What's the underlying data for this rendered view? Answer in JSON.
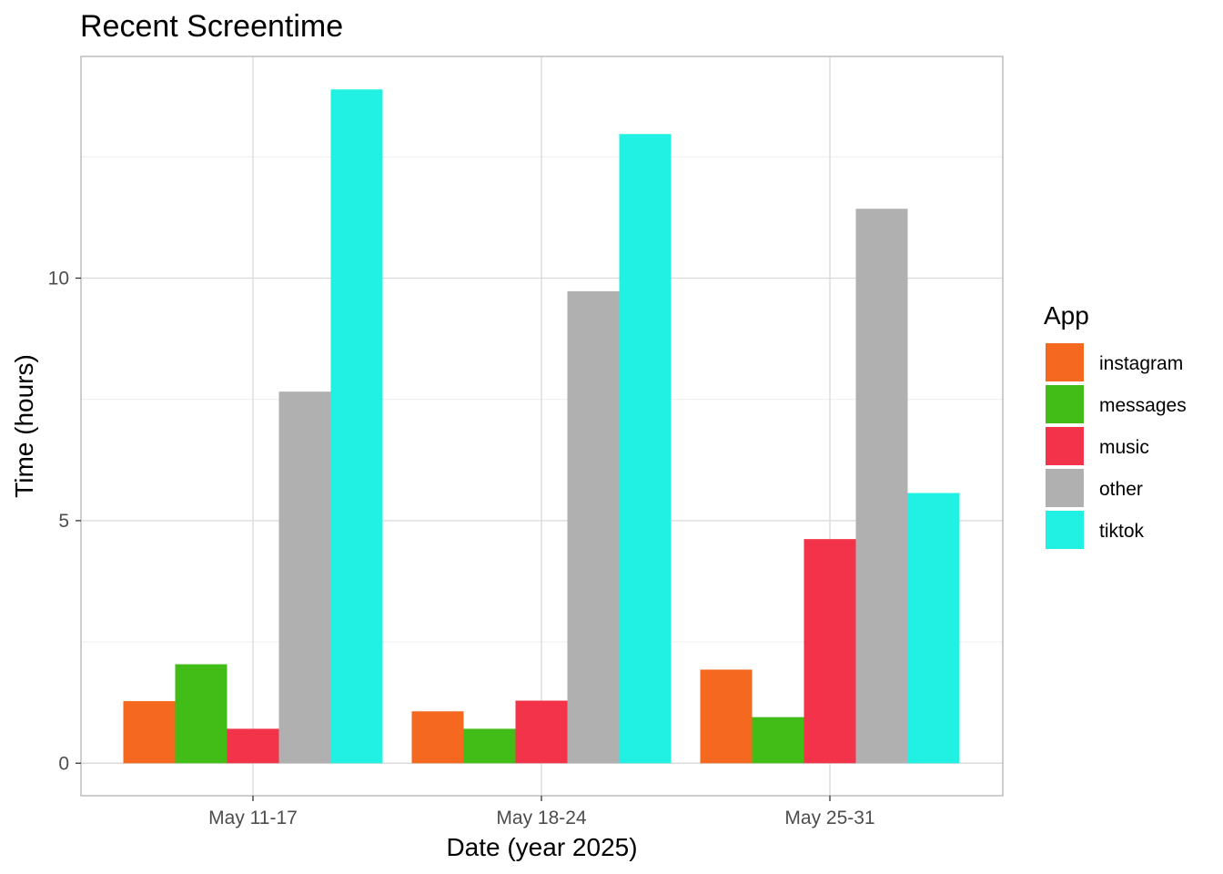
{
  "chart_data": {
    "type": "bar",
    "title": "Recent Screentime",
    "xlabel": "Date (year 2025)",
    "ylabel": "Time (hours)",
    "categories": [
      "May 11-17",
      "May 18-24",
      "May 25-31"
    ],
    "series": [
      {
        "name": "instagram",
        "color": "#F4691F",
        "values": [
          1.28,
          1.07,
          1.93
        ]
      },
      {
        "name": "messages",
        "color": "#42BC17",
        "values": [
          2.04,
          0.71,
          0.95
        ]
      },
      {
        "name": "music",
        "color": "#F2334A",
        "values": [
          0.71,
          1.29,
          4.62
        ]
      },
      {
        "name": "other",
        "color": "#B0B0B0",
        "values": [
          7.66,
          9.73,
          11.43
        ]
      },
      {
        "name": "tiktok",
        "color": "#21F1E2",
        "values": [
          13.89,
          12.97,
          5.57
        ]
      }
    ],
    "ylim": [
      -0.67,
      14.57
    ],
    "yticks": [
      0,
      5,
      10
    ],
    "ytick_labels": [
      "0",
      "5",
      "10"
    ],
    "grid": true,
    "legend": {
      "title": "App",
      "position": "right"
    }
  }
}
